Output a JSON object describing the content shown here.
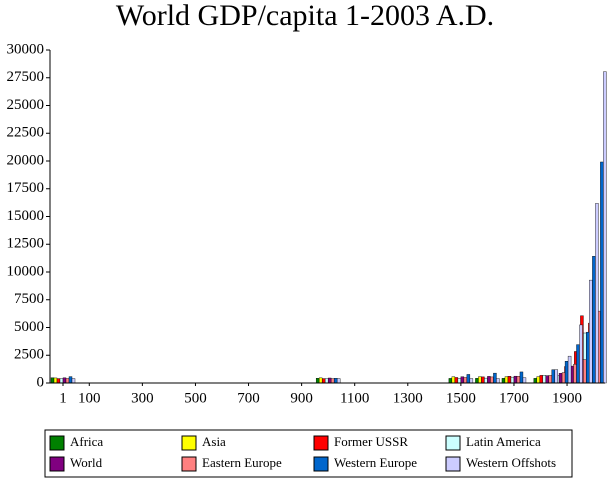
{
  "chart_data": {
    "type": "bar",
    "title": "World GDP/capita 1-2003 A.D.",
    "x": [
      1,
      1000,
      1500,
      1600,
      1700,
      1820,
      1870,
      1913,
      1950,
      1973,
      2003
    ],
    "series": [
      {
        "name": "Africa",
        "color": "#008000",
        "values": [
          472,
          425,
          414,
          422,
          421,
          420,
          500,
          637,
          894,
          1410,
          1549
        ]
      },
      {
        "name": "Asia",
        "color": "#ffff00",
        "values": [
          456,
          465,
          568,
          574,
          572,
          577,
          550,
          658,
          634,
          1226,
          4434
        ]
      },
      {
        "name": "Former USSR",
        "color": "#ff0000",
        "values": [
          400,
          400,
          499,
          552,
          610,
          688,
          943,
          1488,
          2841,
          6059,
          5397
        ]
      },
      {
        "name": "Latin America",
        "color": "#ccffff",
        "values": [
          400,
          400,
          416,
          438,
          527,
          691,
          676,
          1481,
          2506,
          4504,
          5786
        ]
      },
      {
        "name": "World",
        "color": "#800080",
        "values": [
          467,
          450,
          566,
          596,
          616,
          667,
          873,
          1526,
          2113,
          4091,
          6516
        ]
      },
      {
        "name": "Eastern Europe",
        "color": "#ff8080",
        "values": [
          412,
          400,
          496,
          548,
          606,
          683,
          937,
          1695,
          2111,
          4988,
          6476
        ]
      },
      {
        "name": "Western Europe",
        "color": "#0066cc",
        "values": [
          576,
          427,
          771,
          889,
          997,
          1202,
          1960,
          3458,
          4579,
          11416,
          19912
        ]
      },
      {
        "name": "Western Offshots",
        "color": "#ccccff",
        "values": [
          400,
          400,
          400,
          400,
          476,
          1202,
          2419,
          5233,
          9268,
          16179,
          28039
        ]
      }
    ],
    "xlim": [
      -48,
      2043
    ],
    "xticks": [
      1,
      100,
      300,
      500,
      700,
      900,
      1100,
      1300,
      1500,
      1700,
      1900
    ],
    "ylim": [
      0,
      30000
    ],
    "yticks": [
      0,
      2500,
      5000,
      7500,
      10000,
      12500,
      15000,
      17500,
      20000,
      22500,
      25000,
      27500,
      30000
    ],
    "legend": "bottom"
  }
}
